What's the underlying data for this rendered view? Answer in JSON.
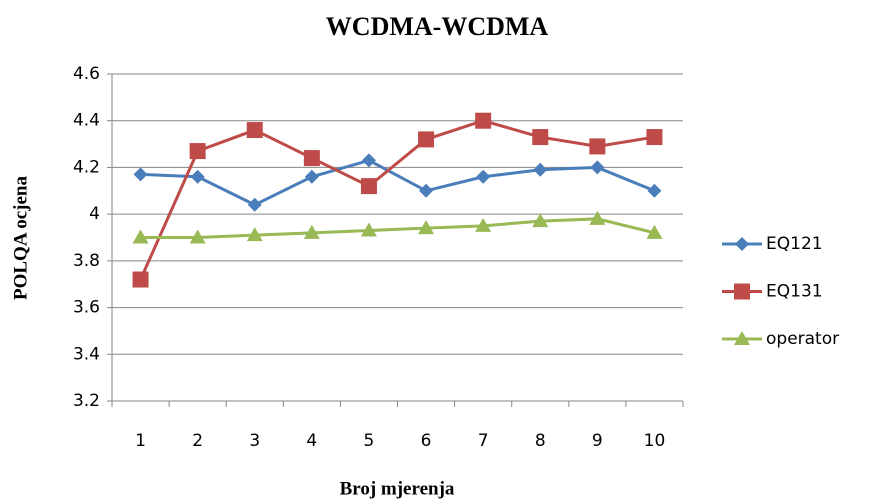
{
  "chart_data": {
    "type": "line",
    "title": "WCDMA-WCDMA",
    "x_label": "Broj mjerenja",
    "y_label": "POLQA  ocjena",
    "categories": [
      "1",
      "2",
      "3",
      "4",
      "5",
      "6",
      "7",
      "8",
      "9",
      "10"
    ],
    "ylim": [
      3.2,
      4.6
    ],
    "yticks": [
      3.2,
      3.4,
      3.6,
      3.8,
      4,
      4.2,
      4.4,
      4.6
    ],
    "grid": true,
    "legend": "right",
    "series": [
      {
        "name": "EQ121",
        "color": "#4a7ebb",
        "marker": "diamond",
        "values": [
          4.17,
          4.16,
          4.04,
          4.16,
          4.23,
          4.1,
          4.16,
          4.19,
          4.2,
          4.1
        ]
      },
      {
        "name": "EQ131",
        "color": "#be4b48",
        "marker": "square",
        "values": [
          3.72,
          4.27,
          4.36,
          4.24,
          4.12,
          4.32,
          4.4,
          4.33,
          4.29,
          4.33
        ]
      },
      {
        "name": "operator",
        "color": "#98b954",
        "marker": "triangle",
        "values": [
          3.9,
          3.9,
          3.91,
          3.92,
          3.93,
          3.94,
          3.95,
          3.97,
          3.98,
          3.92
        ]
      }
    ]
  }
}
